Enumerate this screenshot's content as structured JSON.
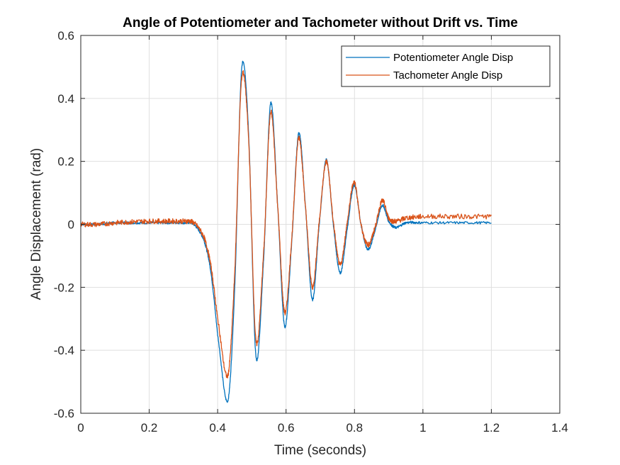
{
  "chart_data": {
    "type": "line",
    "title": "Angle of Potentiometer and Tachometer without Drift vs. Time",
    "xlabel": "Time (seconds)",
    "ylabel": "Angle Displacement (rad)",
    "xlim": [
      0,
      1.4
    ],
    "ylim": [
      -0.6,
      0.6
    ],
    "xticks": [
      0,
      0.2,
      0.4,
      0.6,
      0.8,
      1,
      1.2,
      1.4
    ],
    "xtick_labels": [
      "0",
      "0.2",
      "0.4",
      "0.6",
      "0.8",
      "1",
      "1.2",
      "1.4"
    ],
    "yticks": [
      -0.6,
      -0.4,
      -0.2,
      0,
      0.2,
      0.4,
      0.6
    ],
    "ytick_labels": [
      "-0.6",
      "-0.4",
      "-0.2",
      "0",
      "0.2",
      "0.4",
      "0.6"
    ],
    "grid": true,
    "legend_position": "top-right",
    "series": [
      {
        "name": "Potentiometer Angle Disp",
        "color": "#0072BD",
        "x": [
          0,
          0.05,
          0.1,
          0.15,
          0.2,
          0.25,
          0.3,
          0.33,
          0.36,
          0.38,
          0.4,
          0.43,
          0.45,
          0.47,
          0.49,
          0.512,
          0.535,
          0.555,
          0.576,
          0.596,
          0.617,
          0.637,
          0.657,
          0.677,
          0.697,
          0.718,
          0.738,
          0.758,
          0.778,
          0.799,
          0.819,
          0.839,
          0.86,
          0.881,
          0.9,
          0.92,
          0.95,
          1.0,
          1.1,
          1.2
        ],
        "y": [
          0.0,
          0.0,
          0.005,
          0.005,
          0.005,
          0.005,
          0.005,
          0.0,
          -0.05,
          -0.15,
          -0.35,
          -0.56,
          -0.2,
          0.49,
          0.3,
          -0.42,
          -0.1,
          0.385,
          0.05,
          -0.325,
          -0.05,
          0.29,
          0.05,
          -0.24,
          0.0,
          0.205,
          0.0,
          -0.155,
          -0.02,
          0.125,
          0.0,
          -0.08,
          -0.02,
          0.06,
          0.01,
          -0.01,
          0.005,
          0.005,
          0.005,
          0.005
        ]
      },
      {
        "name": "Tachometer Angle Disp",
        "color": "#D95319",
        "x": [
          0,
          0.05,
          0.1,
          0.15,
          0.2,
          0.25,
          0.3,
          0.33,
          0.36,
          0.38,
          0.4,
          0.43,
          0.45,
          0.47,
          0.49,
          0.512,
          0.535,
          0.555,
          0.576,
          0.596,
          0.617,
          0.637,
          0.657,
          0.677,
          0.697,
          0.718,
          0.738,
          0.758,
          0.778,
          0.799,
          0.819,
          0.839,
          0.86,
          0.881,
          0.9,
          0.92,
          0.95,
          1.0,
          1.1,
          1.2
        ],
        "y": [
          0.0,
          0.0,
          0.005,
          0.008,
          0.01,
          0.01,
          0.01,
          0.005,
          -0.04,
          -0.13,
          -0.3,
          -0.48,
          -0.15,
          0.46,
          0.28,
          -0.37,
          -0.08,
          0.355,
          0.05,
          -0.28,
          -0.04,
          0.275,
          0.05,
          -0.2,
          0.01,
          0.2,
          0.01,
          -0.13,
          0.0,
          0.135,
          0.0,
          -0.065,
          -0.01,
          0.075,
          0.02,
          0.01,
          0.02,
          0.025,
          0.025,
          0.025
        ]
      }
    ]
  }
}
